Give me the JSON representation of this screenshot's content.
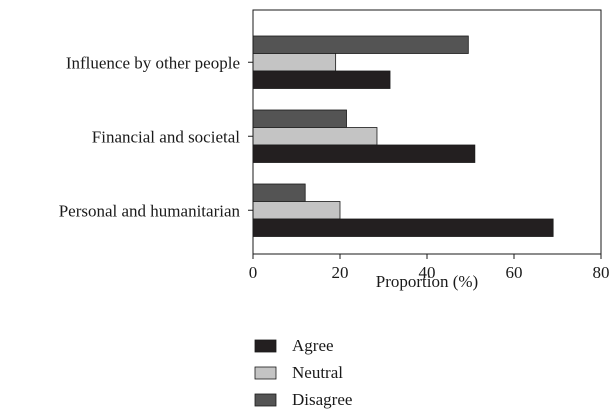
{
  "chart_data": {
    "type": "bar",
    "orientation": "horizontal",
    "categories": [
      "Influence by other people",
      "Financial and societal",
      "Personal and humanitarian"
    ],
    "series": [
      {
        "name": "Agree",
        "color": "#231f20",
        "values": [
          31.5,
          51,
          69
        ]
      },
      {
        "name": "Neutral",
        "color": "#c4c4c4",
        "values": [
          19,
          28.5,
          20
        ]
      },
      {
        "name": "Disagree",
        "color": "#545454",
        "values": [
          49.5,
          21.5,
          12
        ]
      }
    ],
    "xlabel": "Proportion (%)",
    "ylabel": "",
    "xlim": [
      0,
      80
    ],
    "xticks": [
      "0",
      "20",
      "40",
      "60",
      "80"
    ],
    "grid": false,
    "legend": {
      "position": "bottom",
      "items": [
        "Agree",
        "Neutral",
        "Disagree"
      ]
    }
  }
}
